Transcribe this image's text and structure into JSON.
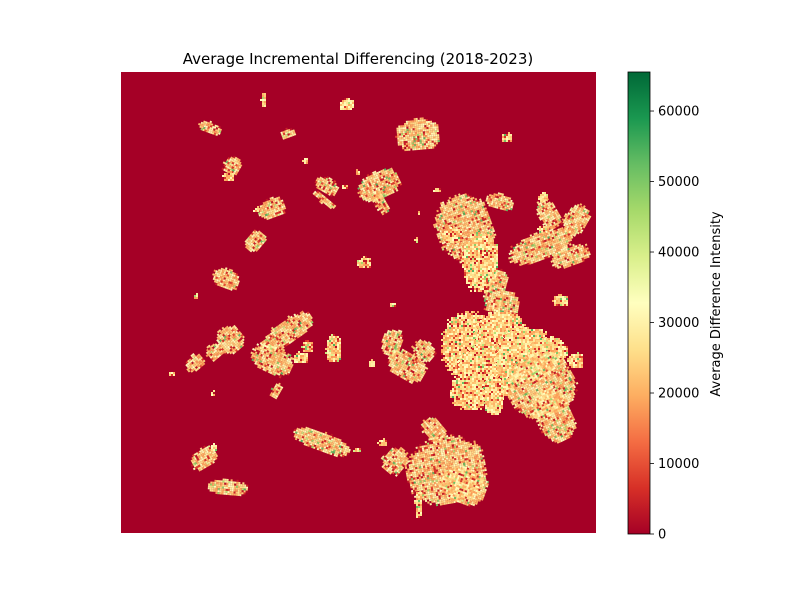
{
  "chart_data": {
    "type": "heatmap",
    "title": "Average Incremental Differencing (2018-2023)",
    "xlabel": "",
    "ylabel": "",
    "axes_visible": false,
    "colormap": "RdYlGn",
    "colormap_stops": [
      "#a50026",
      "#d73027",
      "#f46d43",
      "#fdae61",
      "#fee08b",
      "#ffffbf",
      "#d9ef8b",
      "#a6d96a",
      "#66bd63",
      "#1a9850",
      "#006837"
    ],
    "background_value": 0,
    "colorbar": {
      "label": "Average Difference Intensity",
      "range": [
        0,
        65535
      ],
      "ticks": [
        0,
        10000,
        20000,
        30000,
        40000,
        50000,
        60000
      ],
      "tick_labels": [
        "0",
        "10000",
        "20000",
        "30000",
        "40000",
        "50000",
        "60000"
      ],
      "position": "right"
    },
    "typical_patch_value_range": [
      15000,
      35000
    ],
    "max_observed_value": 55000
  }
}
